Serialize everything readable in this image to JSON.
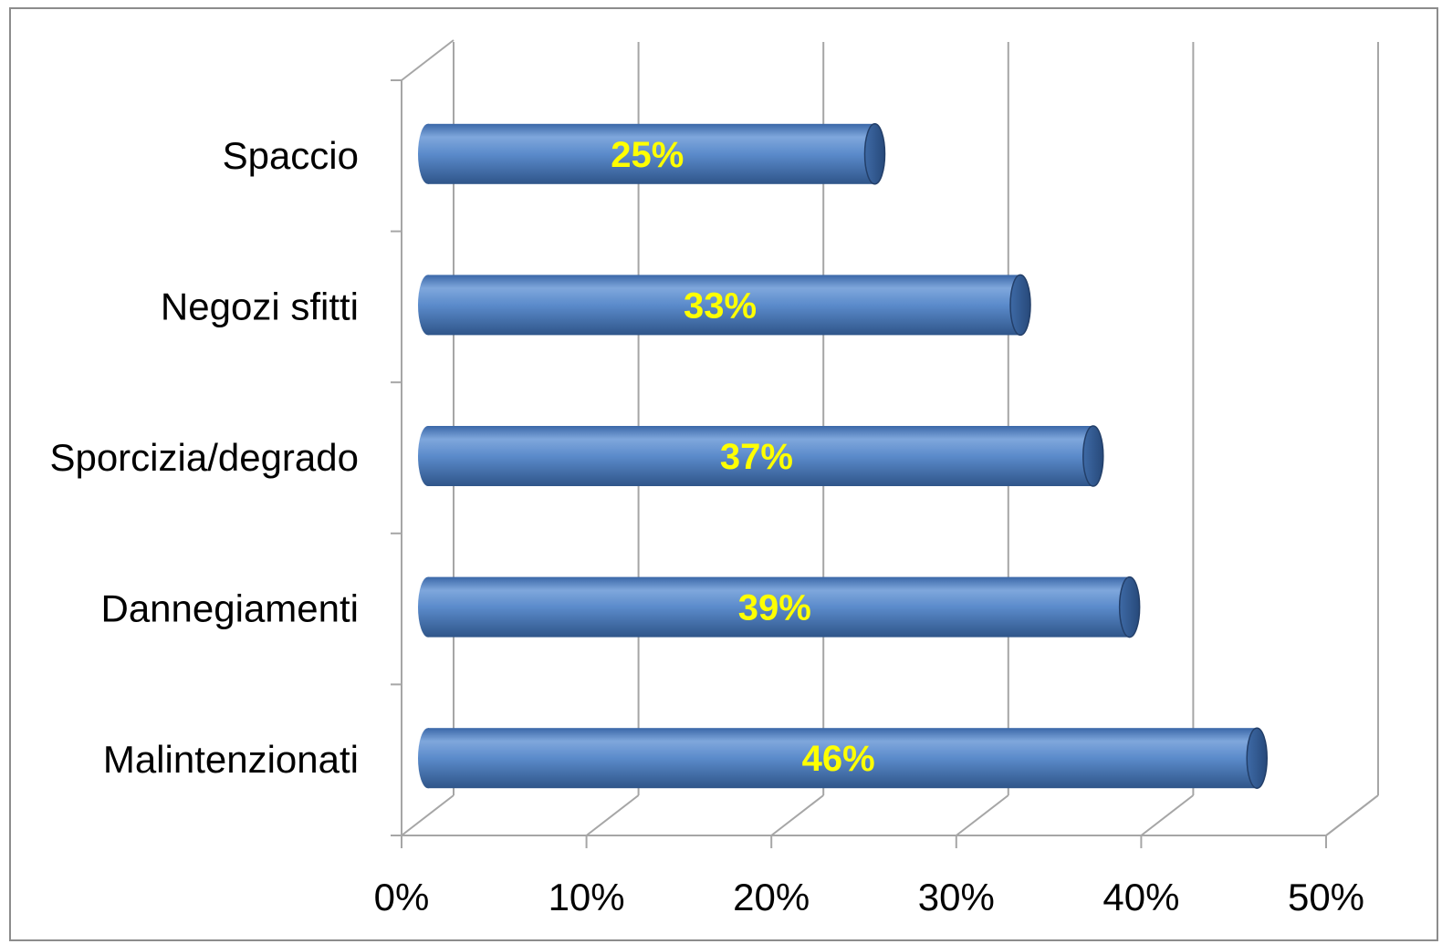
{
  "chart_data": {
    "type": "bar",
    "orientation": "horizontal",
    "style": "3d-cylinder",
    "categories": [
      "Spaccio",
      "Negozi sfitti",
      "Sporcizia/degrado",
      "Dannegiamenti",
      "Malintenzionati"
    ],
    "values": [
      25,
      33,
      37,
      39,
      46
    ],
    "data_labels": [
      "25%",
      "33%",
      "37%",
      "39%",
      "46%"
    ],
    "x_ticks": [
      "0%",
      "10%",
      "20%",
      "30%",
      "40%",
      "50%"
    ],
    "xlim": [
      0,
      50
    ],
    "grid": true,
    "legend": "none",
    "colors": {
      "bar": "#4f81bd",
      "bar_light": "#7fa7dc",
      "bar_dark": "#2f5589",
      "label": "#ffff00",
      "grid": "#a6a6a6"
    }
  }
}
